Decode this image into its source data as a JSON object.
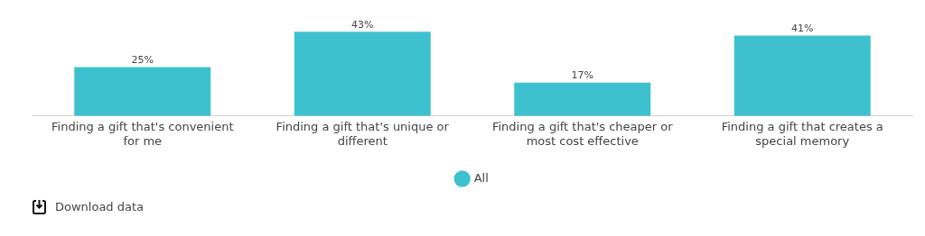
{
  "chart_data": {
    "type": "bar",
    "categories": [
      "Finding a gift that's convenient for me",
      "Finding a gift that's unique or different",
      "Finding a gift that's cheaper or most cost effective",
      "Finding a gift that creates a special memory"
    ],
    "series": [
      {
        "name": "All",
        "color": "#3ec1cf",
        "values": [
          25,
          43,
          17,
          41
        ],
        "value_labels": [
          "25%",
          "43%",
          "17%",
          "41%"
        ]
      }
    ],
    "tick_labels": "x",
    "grid": false,
    "legend": "bottom",
    "annotations": [
      "Download data"
    ]
  }
}
